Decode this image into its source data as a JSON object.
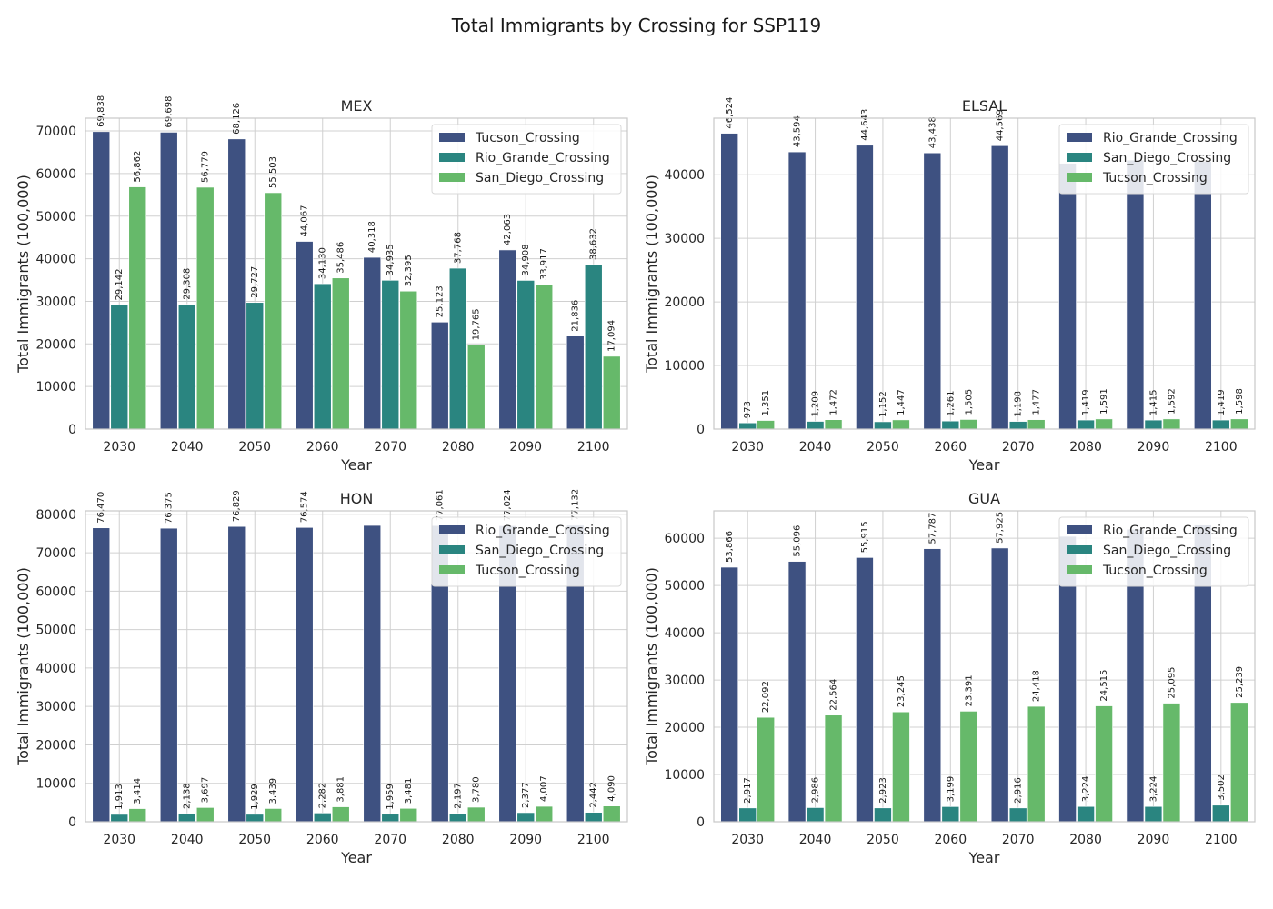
{
  "figure_title": "Total Immigrants by Crossing for SSP119",
  "colors": {
    "series1": "#3e5181",
    "series2": "#2a8580",
    "series3": "#66b96a",
    "grid": "#d0d0d0",
    "frame": "#c8c8c8",
    "text": "#262626"
  },
  "chart_data": [
    {
      "type": "bar",
      "title": "MEX",
      "xlabel": "Year",
      "ylabel": "Total Immigrants (100,000)",
      "categories": [
        "2030",
        "2040",
        "2050",
        "2060",
        "2070",
        "2080",
        "2090",
        "2100"
      ],
      "ylim": [
        0,
        73000
      ],
      "yticks": [
        0,
        10000,
        20000,
        30000,
        40000,
        50000,
        60000,
        70000
      ],
      "legend": "top-right",
      "grid": true,
      "series": [
        {
          "name": "Tucson_Crossing",
          "values": [
            69838,
            69698,
            68126,
            44067,
            40318,
            25123,
            42063,
            21836
          ],
          "labels": [
            "69,838",
            "69,698",
            "68,126",
            "44,067",
            "40,318",
            "25,123",
            "42,063",
            "21,836"
          ]
        },
        {
          "name": "Rio_Grande_Crossing",
          "values": [
            29142,
            29308,
            29727,
            34130,
            34935,
            37768,
            34908,
            38632
          ],
          "labels": [
            "29,142",
            "29,308",
            "29,727",
            "34,130",
            "34,935",
            "37,768",
            "34,908",
            "38,632"
          ]
        },
        {
          "name": "San_Diego_Crossing",
          "values": [
            56862,
            56779,
            55503,
            35486,
            32395,
            19765,
            33917,
            17094
          ],
          "labels": [
            "56,862",
            "56,779",
            "55,503",
            "35,486",
            "32,395",
            "19,765",
            "33,917",
            "17,094"
          ]
        }
      ]
    },
    {
      "type": "bar",
      "title": "ELSAL",
      "xlabel": "Year",
      "ylabel": "Total Immigrants (100,000)",
      "categories": [
        "2030",
        "2040",
        "2050",
        "2060",
        "2070",
        "2080",
        "2090",
        "2100"
      ],
      "ylim": [
        0,
        48900
      ],
      "yticks": [
        0,
        10000,
        20000,
        30000,
        40000
      ],
      "legend": "top-right",
      "grid": true,
      "series": [
        {
          "name": "Rio_Grande_Crossing",
          "values": [
            46524,
            43594,
            44643,
            43438,
            44569,
            41800,
            42300,
            42100
          ],
          "labels": [
            "46,524",
            "43,594",
            "44,643",
            "43,438",
            "44,569",
            "",
            "",
            ""
          ]
        },
        {
          "name": "San_Diego_Crossing",
          "values": [
            973,
            1209,
            1152,
            1261,
            1198,
            1419,
            1415,
            1419
          ],
          "labels": [
            "973",
            "1,209",
            "1,152",
            "1,261",
            "1,198",
            "1,419",
            "1,415",
            "1,419"
          ]
        },
        {
          "name": "Tucson_Crossing",
          "values": [
            1351,
            1472,
            1447,
            1505,
            1477,
            1591,
            1592,
            1598
          ],
          "labels": [
            "1,351",
            "1,472",
            "1,447",
            "1,505",
            "1,477",
            "1,591",
            "1,592",
            "1,598"
          ]
        }
      ]
    },
    {
      "type": "bar",
      "title": "HON",
      "xlabel": "Year",
      "ylabel": "Total Immigrants (100,000)",
      "categories": [
        "2030",
        "2040",
        "2050",
        "2060",
        "2070",
        "2080",
        "2090",
        "2100"
      ],
      "ylim": [
        0,
        80900
      ],
      "yticks": [
        0,
        10000,
        20000,
        30000,
        40000,
        50000,
        60000,
        70000,
        80000
      ],
      "legend": "top-right",
      "grid": true,
      "series": [
        {
          "name": "Rio_Grande_Crossing",
          "values": [
            76470,
            76375,
            76829,
            76574,
            77100,
            77061,
            77024,
            77132
          ],
          "labels": [
            "76,470",
            "76,375",
            "76,829",
            "76,574",
            "",
            "77,061",
            "77,024",
            "77,132"
          ]
        },
        {
          "name": "San_Diego_Crossing",
          "values": [
            1913,
            2138,
            1929,
            2282,
            1959,
            2197,
            2377,
            2442
          ],
          "labels": [
            "1,913",
            "2,138",
            "1,929",
            "2,282",
            "1,959",
            "2,197",
            "2,377",
            "2,442"
          ]
        },
        {
          "name": "Tucson_Crossing",
          "values": [
            3414,
            3697,
            3439,
            3881,
            3481,
            3780,
            4007,
            4090
          ],
          "labels": [
            "3,414",
            "3,697",
            "3,439",
            "3,881",
            "3,481",
            "3,780",
            "4,007",
            "4,090"
          ]
        }
      ]
    },
    {
      "type": "bar",
      "title": "GUA",
      "xlabel": "Year",
      "ylabel": "Total Immigrants (100,000)",
      "categories": [
        "2030",
        "2040",
        "2050",
        "2060",
        "2070",
        "2080",
        "2090",
        "2100"
      ],
      "ylim": [
        0,
        65800
      ],
      "yticks": [
        0,
        10000,
        20000,
        30000,
        40000,
        50000,
        60000
      ],
      "legend": "top-right",
      "grid": true,
      "series": [
        {
          "name": "Rio_Grande_Crossing",
          "values": [
            53866,
            55096,
            55915,
            57787,
            57925,
            60400,
            61900,
            62789
          ],
          "labels": [
            "53,866",
            "55,096",
            "55,915",
            "57,787",
            "57,925",
            "",
            "",
            ""
          ]
        },
        {
          "name": "San_Diego_Crossing",
          "values": [
            2917,
            2986,
            2923,
            3199,
            2916,
            3224,
            3224,
            3502
          ],
          "labels": [
            "2,917",
            "2,986",
            "2,923",
            "3,199",
            "2,916",
            "3,224",
            "3,224",
            "3,502"
          ]
        },
        {
          "name": "Tucson_Crossing",
          "values": [
            22092,
            22564,
            23245,
            23391,
            24418,
            24515,
            25095,
            25239
          ],
          "labels": [
            "22,092",
            "22,564",
            "23,245",
            "23,391",
            "24,418",
            "24,515",
            "25,095",
            "25,239"
          ]
        }
      ]
    }
  ]
}
